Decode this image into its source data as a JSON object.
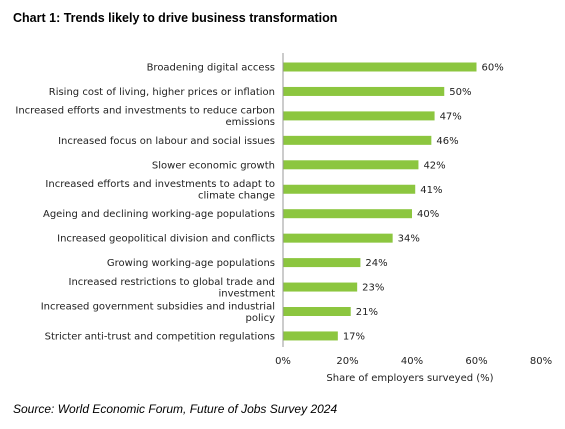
{
  "chart_title": "Chart 1: Trends likely to drive business transformation",
  "source_note": "Source: World Economic Forum, Future of Jobs Survey 2024",
  "chart_data": {
    "type": "bar",
    "orientation": "horizontal",
    "title": "Chart 1: Trends likely to drive business transformation",
    "xlabel": "Share of employers surveyed (%)",
    "ylabel": "",
    "xlim": [
      0,
      80
    ],
    "x_ticks": [
      0,
      20,
      40,
      60,
      80
    ],
    "x_tick_labels": [
      "0%",
      "20%",
      "40%",
      "60%",
      "80%"
    ],
    "grid": false,
    "bar_color": "#8cc63f",
    "categories": [
      [
        "Broadening digital access"
      ],
      [
        "Rising cost of living, higher prices or inflation"
      ],
      [
        "Increased efforts and investments to reduce carbon",
        "emissions"
      ],
      [
        "Increased focus on labour and social issues"
      ],
      [
        "Slower economic growth"
      ],
      [
        "Increased efforts and investments to adapt to",
        "climate change"
      ],
      [
        "Ageing and declining working-age populations"
      ],
      [
        "Increased geopolitical division and conflicts"
      ],
      [
        "Growing working-age populations"
      ],
      [
        "Increased restrictions to global trade and",
        "investment"
      ],
      [
        "Increased government subsidies and industrial",
        "policy"
      ],
      [
        "Stricter anti-trust and competition regulations"
      ]
    ],
    "values": [
      60,
      50,
      47,
      46,
      42,
      41,
      40,
      34,
      24,
      23,
      21,
      17
    ],
    "value_labels": [
      "60%",
      "50%",
      "47%",
      "46%",
      "42%",
      "41%",
      "40%",
      "34%",
      "24%",
      "23%",
      "21%",
      "17%"
    ]
  }
}
